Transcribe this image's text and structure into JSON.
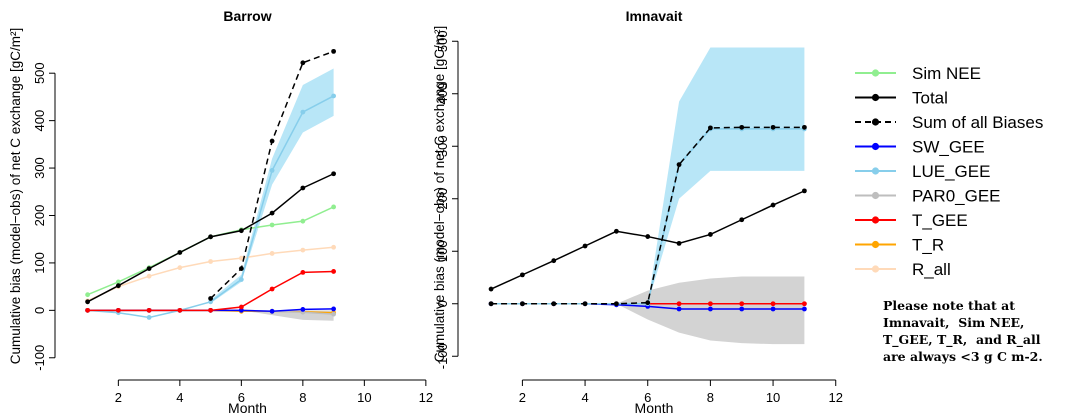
{
  "legend": {
    "entries": [
      {
        "label": "Sim NEE",
        "color": "#90ee90",
        "style": "solid"
      },
      {
        "label": "Total",
        "color": "#000000",
        "style": "solid"
      },
      {
        "label": "Sum of all Biases",
        "color": "#000000",
        "style": "dashed"
      },
      {
        "label": "SW_GEE",
        "color": "#0000ff",
        "style": "solid"
      },
      {
        "label": "LUE_GEE",
        "color": "#87ceeb",
        "style": "solid"
      },
      {
        "label": "PAR0_GEE",
        "color": "#bebebe",
        "style": "solid"
      },
      {
        "label": "T_GEE",
        "color": "#ff0000",
        "style": "solid"
      },
      {
        "label": "T_R",
        "color": "#ffa500",
        "style": "solid"
      },
      {
        "label": "R_all",
        "color": "#ffdab9",
        "style": "solid"
      }
    ]
  },
  "note": {
    "lines": [
      "Please note that at",
      "Imnavait,  Sim NEE,",
      "T_GEE, T_R,  and R_all",
      "are always <3 g C m-2."
    ]
  },
  "chart_data": [
    {
      "type": "line",
      "title": "Barrow",
      "xlabel": "Month",
      "ylabel": "Cumulative bias (model−obs) of net C exchange [gC/m²]",
      "xlim": [
        0.2,
        12.2
      ],
      "ylim": [
        -130,
        570
      ],
      "xticks": [
        2,
        4,
        6,
        8,
        10,
        12
      ],
      "yticks": [
        -100,
        0,
        100,
        200,
        300,
        400,
        500
      ],
      "bands": [
        {
          "name": "LUE_GEE",
          "color": "#b8e6f7",
          "x": [
            5,
            6,
            7,
            8,
            9
          ],
          "lower": [
            15,
            60,
            265,
            375,
            410
          ],
          "upper": [
            22,
            75,
            320,
            475,
            510
          ]
        },
        {
          "name": "PAR0_GEE",
          "color": "#d3d3d3",
          "x": [
            6,
            7,
            8,
            9
          ],
          "lower": [
            0,
            -10,
            -20,
            -22
          ],
          "upper": [
            0,
            0,
            0,
            0
          ]
        }
      ],
      "series": [
        {
          "name": "R_all",
          "color": "#ffdab9",
          "style": "solid",
          "x": [
            1,
            2,
            3,
            4,
            5,
            6,
            7,
            8,
            9
          ],
          "y": [
            20,
            50,
            72,
            90,
            103,
            110,
            120,
            127,
            133
          ]
        },
        {
          "name": "Sim NEE",
          "color": "#90ee90",
          "style": "solid",
          "x": [
            1,
            2,
            3,
            4,
            5,
            6,
            7,
            8,
            9
          ],
          "y": [
            33,
            60,
            90,
            122,
            155,
            170,
            180,
            188,
            218
          ]
        },
        {
          "name": "T_R",
          "color": "#ffa500",
          "style": "solid",
          "x": [
            1,
            2,
            3,
            4,
            5,
            6,
            7,
            8,
            9
          ],
          "y": [
            0,
            0,
            0,
            0,
            0,
            -2,
            -2,
            -3,
            -5
          ]
        },
        {
          "name": "PAR0_GEE",
          "color": "#bebebe",
          "style": "solid",
          "x": [
            1,
            2,
            3,
            4,
            5,
            6,
            7,
            8,
            9
          ],
          "y": [
            0,
            0,
            0,
            0,
            0,
            0,
            -2,
            -4,
            -8
          ]
        },
        {
          "name": "SW_GEE",
          "color": "#0000ff",
          "style": "solid",
          "x": [
            1,
            2,
            3,
            4,
            5,
            6,
            7,
            8,
            9
          ],
          "y": [
            0,
            0,
            0,
            0,
            0,
            0,
            -2,
            2,
            3
          ]
        },
        {
          "name": "LUE_GEE",
          "color": "#87ceeb",
          "style": "solid",
          "x": [
            1,
            2,
            3,
            4,
            5,
            6,
            7,
            8,
            9
          ],
          "y": [
            0,
            -5,
            -15,
            0,
            18,
            65,
            295,
            418,
            452
          ]
        },
        {
          "name": "T_GEE",
          "color": "#ff0000",
          "style": "solid",
          "x": [
            1,
            2,
            3,
            4,
            5,
            6,
            7,
            8,
            9
          ],
          "y": [
            0,
            0,
            0,
            0,
            0,
            7,
            45,
            80,
            82
          ]
        },
        {
          "name": "Total",
          "color": "#000000",
          "style": "solid",
          "x": [
            1,
            2,
            3,
            4,
            5,
            6,
            7,
            8,
            9
          ],
          "y": [
            18,
            52,
            88,
            122,
            155,
            168,
            205,
            258,
            288
          ]
        },
        {
          "name": "Sum of all Biases",
          "color": "#000000",
          "style": "dashed",
          "x": [
            5,
            6,
            7,
            8,
            9
          ],
          "y": [
            25,
            88,
            357,
            522,
            546
          ]
        }
      ]
    },
    {
      "type": "line",
      "title": "Imnavait",
      "xlabel": "Month",
      "ylabel": "Cumulative bias (model−obs) of net C exchange [gC/m²]",
      "xlim": [
        0.2,
        12.2
      ],
      "ylim": [
        -130,
        510
      ],
      "xticks": [
        2,
        4,
        6,
        8,
        10,
        12
      ],
      "yticks": [
        -100,
        0,
        100,
        200,
        300,
        400,
        500
      ],
      "bands": [
        {
          "name": "LUE_GEE",
          "color": "#b8e6f7",
          "x": [
            6,
            7,
            8,
            9,
            10,
            11
          ],
          "lower": [
            0,
            200,
            253,
            253,
            253,
            253
          ],
          "upper": [
            0,
            385,
            488,
            488,
            488,
            488
          ]
        },
        {
          "name": "PAR0_GEE",
          "color": "#d3d3d3",
          "x": [
            5,
            6,
            7,
            8,
            9,
            10,
            11
          ],
          "lower": [
            0,
            -30,
            -55,
            -70,
            -75,
            -77,
            -77
          ],
          "upper": [
            0,
            25,
            40,
            48,
            52,
            52,
            52
          ]
        }
      ],
      "series": [
        {
          "name": "PAR0_GEE",
          "color": "#bebebe",
          "style": "solid",
          "x": [
            1,
            2,
            3,
            4,
            5,
            6,
            7,
            8,
            9,
            10,
            11
          ],
          "y": [
            0,
            0,
            0,
            0,
            0,
            0,
            0,
            0,
            0,
            0,
            0
          ]
        },
        {
          "name": "T_GEE",
          "color": "#ff0000",
          "style": "solid",
          "x": [
            1,
            2,
            3,
            4,
            5,
            6,
            7,
            8,
            9,
            10,
            11
          ],
          "y": [
            0,
            0,
            0,
            0,
            0,
            0,
            0,
            0,
            0,
            0,
            0
          ]
        },
        {
          "name": "SW_GEE",
          "color": "#0000ff",
          "style": "solid",
          "x": [
            1,
            2,
            3,
            4,
            5,
            6,
            7,
            8,
            9,
            10,
            11
          ],
          "y": [
            0,
            0,
            0,
            0,
            -2,
            -5,
            -10,
            -10,
            -10,
            -10,
            -10
          ]
        },
        {
          "name": "LUE_GEE",
          "color": "#87ceeb",
          "style": "solid",
          "x": [
            1,
            2,
            3,
            4,
            5,
            6,
            7,
            8,
            9,
            10,
            11
          ],
          "y": [
            0,
            0,
            0,
            0,
            0,
            0,
            265,
            333,
            333,
            333,
            333
          ]
        },
        {
          "name": "Sum of all Biases",
          "color": "#000000",
          "style": "dashed",
          "x": [
            1,
            2,
            3,
            4,
            5,
            6,
            7,
            8,
            9,
            10,
            11
          ],
          "y": [
            0,
            0,
            0,
            0,
            0,
            2,
            265,
            335,
            336,
            336,
            336
          ]
        },
        {
          "name": "Total",
          "color": "#000000",
          "style": "solid",
          "x": [
            1,
            2,
            3,
            4,
            5,
            6,
            7,
            8,
            9,
            10,
            11
          ],
          "y": [
            28,
            55,
            82,
            110,
            138,
            128,
            115,
            132,
            160,
            188,
            215
          ]
        }
      ]
    }
  ]
}
